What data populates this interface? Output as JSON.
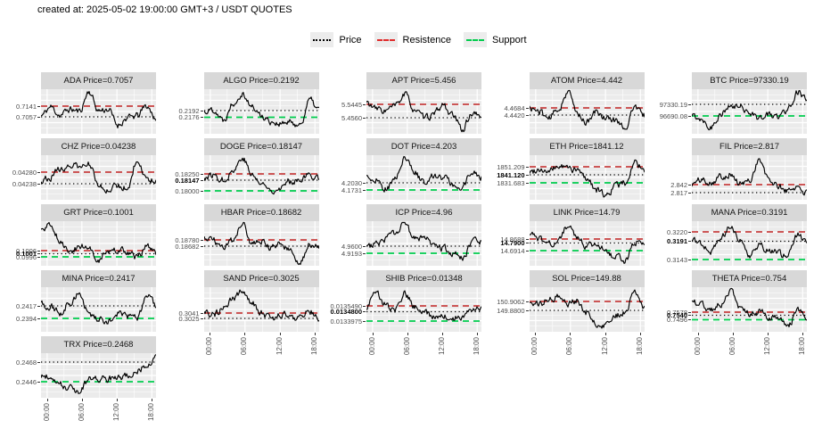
{
  "header": {
    "title": "created at: 2025-05-02 19:00:00 GMT+3 / USDT QUOTES"
  },
  "legend": {
    "items": [
      {
        "label": "Price",
        "style": "dotted",
        "color": "#000000"
      },
      {
        "label": "Resistence",
        "style": "dashed",
        "color": "#e02b2b"
      },
      {
        "label": "Support",
        "style": "dashed",
        "color": "#00cc4c"
      }
    ]
  },
  "colors": {
    "strip_bg": "#d8d8d8",
    "panel_bg": "#ebebeb",
    "grid": "#ffffff",
    "price_line": "#000000",
    "resistance_line": "#c84040",
    "support_line": "#00cd4e",
    "tick_label": "#4d4d4d"
  },
  "axis": {
    "x_ticks": [
      "00:00",
      "06:00",
      "12:00",
      "18:00"
    ]
  },
  "chart_data": {
    "type": "line",
    "x_ticks": [
      "00:00",
      "06:00",
      "12:00",
      "18:00"
    ],
    "x_range": [
      "00:00",
      "19:00"
    ],
    "grid": true,
    "legend_position": "top",
    "charts": [
      {
        "symbol": "ADA",
        "title": "ADA Price=0.7057",
        "price": "0.7057",
        "levels": [
          {
            "kind": "resistance",
            "value": "0.7141",
            "y": 0.62
          },
          {
            "kind": "price",
            "value": "0.7057",
            "y": 0.38
          }
        ],
        "shape": [
          0.4,
          0.6,
          0.42,
          0.55,
          0.5,
          0.95,
          0.52,
          0.55,
          0.2,
          0.35,
          0.4,
          0.62,
          0.35
        ],
        "seed": 11,
        "x_axis": false
      },
      {
        "symbol": "ALGO",
        "title": "ALGO Price=0.2192",
        "price": "0.2192",
        "levels": [
          {
            "kind": "price",
            "value": "0.2192",
            "y": 0.52
          },
          {
            "kind": "support",
            "value": "0.2176",
            "y": 0.37
          }
        ],
        "shape": [
          0.5,
          0.55,
          0.3,
          0.7,
          0.92,
          0.6,
          0.4,
          0.28,
          0.22,
          0.25,
          0.2,
          0.75,
          0.55
        ],
        "seed": 22,
        "x_axis": false
      },
      {
        "symbol": "APT",
        "title": "APT Price=5.456",
        "price": "5.456",
        "levels": [
          {
            "kind": "resistance",
            "value": "5.5445",
            "y": 0.66
          },
          {
            "kind": "price",
            "value": "5.4560",
            "y": 0.36
          }
        ],
        "shape": [
          0.7,
          0.55,
          0.52,
          0.62,
          0.88,
          0.55,
          0.35,
          0.42,
          0.65,
          0.4,
          0.1,
          0.45,
          0.38
        ],
        "seed": 33,
        "x_axis": false
      },
      {
        "symbol": "ATOM",
        "title": "ATOM Price=4.442",
        "price": "4.442",
        "levels": [
          {
            "kind": "resistance",
            "value": "4.4684",
            "y": 0.58
          },
          {
            "kind": "price",
            "value": "4.4420",
            "y": 0.42
          }
        ],
        "shape": [
          0.58,
          0.5,
          0.35,
          0.55,
          0.95,
          0.45,
          0.25,
          0.5,
          0.35,
          0.3,
          0.15,
          0.6,
          0.4
        ],
        "seed": 44,
        "x_axis": false
      },
      {
        "symbol": "BTC",
        "title": "BTC Price=97330.19",
        "price": "97330.19",
        "levels": [
          {
            "kind": "price",
            "value": "97330.19",
            "y": 0.66
          },
          {
            "kind": "support",
            "value": "96690.08",
            "y": 0.4
          }
        ],
        "shape": [
          0.4,
          0.35,
          0.15,
          0.45,
          0.58,
          0.62,
          0.5,
          0.35,
          0.42,
          0.38,
          0.55,
          0.95,
          0.75
        ],
        "seed": 55,
        "x_axis": false
      },
      {
        "symbol": "CHZ",
        "title": "CHZ Price=0.04238",
        "price": "0.04238",
        "levels": [
          {
            "kind": "resistance",
            "value": "0.04280",
            "y": 0.62
          },
          {
            "kind": "price",
            "value": "0.04238",
            "y": 0.36
          }
        ],
        "shape": [
          0.45,
          0.52,
          0.68,
          0.8,
          0.72,
          0.82,
          0.3,
          0.25,
          0.32,
          0.28,
          0.88,
          0.5,
          0.4
        ],
        "seed": 66,
        "x_axis": false
      },
      {
        "symbol": "DOGE",
        "title": "DOGE Price=0.18147",
        "price": "0.18147",
        "levels": [
          {
            "kind": "resistance",
            "value": "0.18250",
            "y": 0.58
          },
          {
            "kind": "price",
            "value": "0.18147",
            "y": 0.44,
            "bold": true
          },
          {
            "kind": "support",
            "value": "0.18000",
            "y": 0.2
          }
        ],
        "shape": [
          0.5,
          0.55,
          0.45,
          0.65,
          0.95,
          0.55,
          0.35,
          0.22,
          0.28,
          0.42,
          0.48,
          0.55,
          0.5
        ],
        "seed": 77,
        "x_axis": false
      },
      {
        "symbol": "DOT",
        "title": "DOT Price=4.203",
        "price": "4.203",
        "levels": [
          {
            "kind": "price",
            "value": "4.2030",
            "y": 0.38
          },
          {
            "kind": "support",
            "value": "4.1731",
            "y": 0.22
          }
        ],
        "shape": [
          0.5,
          0.45,
          0.25,
          0.45,
          0.95,
          0.6,
          0.4,
          0.55,
          0.5,
          0.35,
          0.25,
          0.62,
          0.5
        ],
        "seed": 88,
        "x_axis": false
      },
      {
        "symbol": "ETH",
        "title": "ETH Price=1841.12",
        "price": "1841.12",
        "levels": [
          {
            "kind": "resistance",
            "value": "1851.209",
            "y": 0.74
          },
          {
            "kind": "price",
            "value": "1841.120",
            "y": 0.56,
            "bold": true
          },
          {
            "kind": "support",
            "value": "1831.683",
            "y": 0.38
          }
        ],
        "shape": [
          0.62,
          0.7,
          0.62,
          0.75,
          0.72,
          0.65,
          0.48,
          0.22,
          0.1,
          0.32,
          0.38,
          0.85,
          0.62
        ],
        "seed": 99,
        "x_axis": false
      },
      {
        "symbol": "FIL",
        "title": "FIL Price=2.817",
        "price": "2.817",
        "levels": [
          {
            "kind": "resistance",
            "value": "2.842",
            "y": 0.34
          },
          {
            "kind": "price",
            "value": "2.817",
            "y": 0.16
          }
        ],
        "shape": [
          0.35,
          0.45,
          0.4,
          0.52,
          0.58,
          0.35,
          0.42,
          0.9,
          0.45,
          0.3,
          0.2,
          0.3,
          0.15
        ],
        "seed": 101,
        "x_axis": false
      },
      {
        "symbol": "GRT",
        "title": "GRT Price=0.1001",
        "price": "0.1001",
        "levels": [
          {
            "kind": "resistance",
            "value": "0.1006",
            "y": 0.34
          },
          {
            "kind": "price",
            "value": "0.1001",
            "y": 0.27,
            "bold": true
          },
          {
            "kind": "support",
            "value": "0.0996",
            "y": 0.2
          }
        ],
        "shape": [
          0.8,
          0.92,
          0.55,
          0.3,
          0.42,
          0.4,
          0.15,
          0.3,
          0.35,
          0.32,
          0.18,
          0.42,
          0.28
        ],
        "seed": 112,
        "x_axis": false
      },
      {
        "symbol": "HBAR",
        "title": "HBAR Price=0.18682",
        "price": "0.18682",
        "levels": [
          {
            "kind": "resistance",
            "value": "0.18780",
            "y": 0.58
          },
          {
            "kind": "price",
            "value": "0.18682",
            "y": 0.44
          }
        ],
        "shape": [
          0.62,
          0.55,
          0.45,
          0.55,
          0.95,
          0.5,
          0.55,
          0.4,
          0.48,
          0.35,
          0.1,
          0.48,
          0.42
        ],
        "seed": 123,
        "x_axis": false
      },
      {
        "symbol": "ICP",
        "title": "ICP Price=4.96",
        "price": "4.96",
        "levels": [
          {
            "kind": "price",
            "value": "4.9600",
            "y": 0.44
          },
          {
            "kind": "support",
            "value": "4.9193",
            "y": 0.28
          }
        ],
        "shape": [
          0.42,
          0.5,
          0.6,
          0.72,
          0.95,
          0.6,
          0.65,
          0.45,
          0.4,
          0.28,
          0.15,
          0.52,
          0.55
        ],
        "seed": 134,
        "x_axis": false
      },
      {
        "symbol": "LINK",
        "title": "LINK Price=14.79",
        "price": "14.79",
        "levels": [
          {
            "kind": "resistance",
            "value": "14.8688",
            "y": 0.6
          },
          {
            "kind": "price",
            "value": "14.7900",
            "y": 0.51,
            "bold": true
          },
          {
            "kind": "support",
            "value": "14.6914",
            "y": 0.34
          }
        ],
        "shape": [
          0.68,
          0.6,
          0.5,
          0.55,
          0.9,
          0.62,
          0.45,
          0.5,
          0.3,
          0.2,
          0.12,
          0.55,
          0.5
        ],
        "seed": 145,
        "x_axis": false
      },
      {
        "symbol": "MANA",
        "title": "MANA Price=0.3191",
        "price": "0.3191",
        "levels": [
          {
            "kind": "resistance",
            "value": "0.3220",
            "y": 0.76
          },
          {
            "kind": "price",
            "value": "0.3191",
            "y": 0.55,
            "bold": true
          },
          {
            "kind": "support",
            "value": "0.3143",
            "y": 0.14
          }
        ],
        "shape": [
          0.55,
          0.5,
          0.3,
          0.6,
          0.85,
          0.55,
          0.25,
          0.45,
          0.35,
          0.28,
          0.2,
          0.7,
          0.55
        ],
        "seed": 156,
        "x_axis": false
      },
      {
        "symbol": "MINA",
        "title": "MINA Price=0.2417",
        "price": "0.2417",
        "levels": [
          {
            "kind": "price",
            "value": "0.2417",
            "y": 0.58
          },
          {
            "kind": "support",
            "value": "0.2394",
            "y": 0.3
          }
        ],
        "shape": [
          0.6,
          0.55,
          0.42,
          0.65,
          0.9,
          0.4,
          0.28,
          0.22,
          0.4,
          0.35,
          0.3,
          0.8,
          0.6
        ],
        "seed": 167,
        "x_axis": false
      },
      {
        "symbol": "SAND",
        "title": "SAND Price=0.3025",
        "price": "0.3025",
        "levels": [
          {
            "kind": "resistance",
            "value": "0.3041",
            "y": 0.42
          },
          {
            "kind": "price",
            "value": "0.3025",
            "y": 0.3
          }
        ],
        "shape": [
          0.4,
          0.38,
          0.52,
          0.75,
          0.9,
          0.65,
          0.42,
          0.28,
          0.42,
          0.3,
          0.35,
          0.45,
          0.3
        ],
        "seed": 178,
        "x_axis": true
      },
      {
        "symbol": "SHIB",
        "title": "SHIB Price=0.01348",
        "price": "0.01348",
        "levels": [
          {
            "kind": "resistance",
            "value": "0.0135490",
            "y": 0.58
          },
          {
            "kind": "price",
            "value": "0.0134800",
            "y": 0.45,
            "bold": true
          },
          {
            "kind": "support",
            "value": "0.0133975",
            "y": 0.24
          }
        ],
        "shape": [
          0.55,
          0.9,
          0.6,
          0.5,
          0.88,
          0.55,
          0.42,
          0.32,
          0.4,
          0.3,
          0.35,
          0.55,
          0.48
        ],
        "seed": 189,
        "x_axis": true
      },
      {
        "symbol": "SOL",
        "title": "SOL Price=149.88",
        "price": "149.88",
        "levels": [
          {
            "kind": "resistance",
            "value": "150.9062",
            "y": 0.68
          },
          {
            "kind": "price",
            "value": "149.8800",
            "y": 0.48
          }
        ],
        "shape": [
          0.65,
          0.6,
          0.72,
          0.78,
          0.65,
          0.7,
          0.42,
          0.18,
          0.12,
          0.35,
          0.45,
          0.92,
          0.55
        ],
        "seed": 190,
        "x_axis": true
      },
      {
        "symbol": "THETA",
        "title": "THETA Price=0.754",
        "price": "0.754",
        "levels": [
          {
            "kind": "resistance",
            "value": "0.7578",
            "y": 0.44
          },
          {
            "kind": "price",
            "value": "0.7540",
            "y": 0.37,
            "bold": true
          },
          {
            "kind": "support",
            "value": "0.7496",
            "y": 0.27
          }
        ],
        "shape": [
          0.7,
          0.6,
          0.5,
          0.6,
          0.95,
          0.55,
          0.42,
          0.45,
          0.35,
          0.28,
          0.12,
          0.45,
          0.35
        ],
        "seed": 201,
        "x_axis": true
      },
      {
        "symbol": "TRX",
        "title": "TRX Price=0.2468",
        "price": "0.2468",
        "levels": [
          {
            "kind": "price",
            "value": "0.2468",
            "y": 0.8
          },
          {
            "kind": "support",
            "value": "0.2446",
            "y": 0.36
          }
        ],
        "shape": [
          0.45,
          0.5,
          0.3,
          0.22,
          0.12,
          0.42,
          0.45,
          0.42,
          0.45,
          0.5,
          0.6,
          0.7,
          0.88
        ],
        "seed": 212,
        "x_axis": true
      }
    ]
  }
}
